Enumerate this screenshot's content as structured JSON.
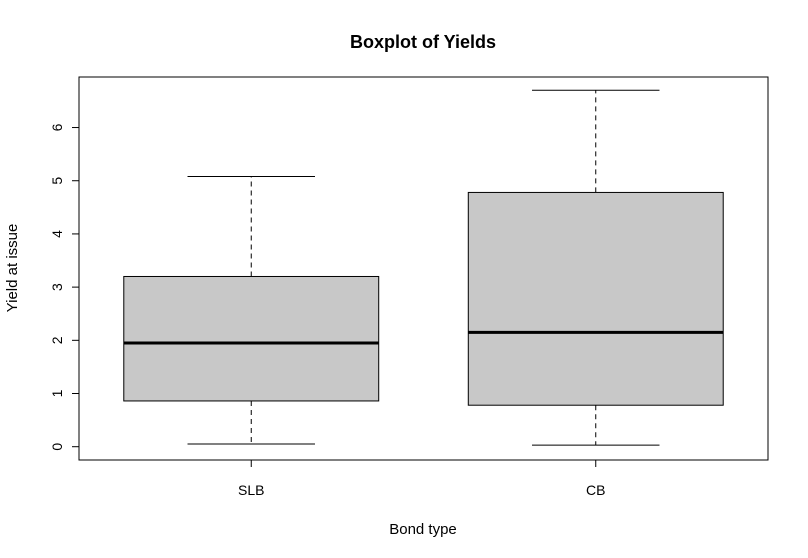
{
  "chart_data": {
    "type": "boxplot",
    "title": "Boxplot of Yields",
    "xlabel": "Bond type",
    "ylabel": "Yield at issue",
    "categories": [
      "SLB",
      "CB"
    ],
    "boxes": [
      {
        "category": "SLB",
        "whisker_low": 0.05,
        "q1": 0.86,
        "median": 1.95,
        "q3": 3.2,
        "whisker_high": 5.08
      },
      {
        "category": "CB",
        "whisker_low": 0.03,
        "q1": 0.78,
        "median": 2.15,
        "q3": 4.78,
        "whisker_high": 6.7
      }
    ],
    "yticks": [
      "0",
      "1",
      "2",
      "3",
      "4",
      "5",
      "6"
    ],
    "ylim": [
      -0.25,
      6.95
    ],
    "grid": false,
    "colors": {
      "box_fill": "#c8c8c8",
      "stroke": "#000000"
    }
  }
}
